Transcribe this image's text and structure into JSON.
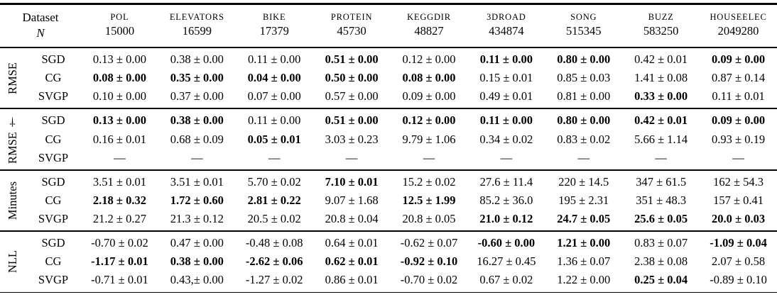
{
  "table": {
    "corner": {
      "dataset_label": "Dataset",
      "n_label": "N"
    },
    "columns": [
      {
        "name": "pol",
        "label": "POL",
        "n": "15000"
      },
      {
        "name": "elevators",
        "label": "ELEVATORS",
        "n": "16599"
      },
      {
        "name": "bike",
        "label": "BIKE",
        "n": "17379"
      },
      {
        "name": "protein",
        "label": "PROTEIN",
        "n": "45730"
      },
      {
        "name": "keggdir",
        "label": "KEGGDIR",
        "n": "48827"
      },
      {
        "name": "3droad",
        "label": "3DROAD",
        "n": "434874"
      },
      {
        "name": "song",
        "label": "SONG",
        "n": "515345"
      },
      {
        "name": "buzz",
        "label": "BUZZ",
        "n": "583250"
      },
      {
        "name": "houseelec",
        "label": "HOUSEELEC",
        "n": "2049280"
      }
    ],
    "blocks": [
      {
        "name": "rmse",
        "label": "RMSE",
        "rows": [
          {
            "method": "SGD",
            "cells": [
              {
                "t": "0.13 ± 0.00",
                "b": false
              },
              {
                "t": "0.38 ± 0.00",
                "b": false
              },
              {
                "t": "0.11 ± 0.00",
                "b": false
              },
              {
                "t": "0.51 ± 0.00",
                "b": true
              },
              {
                "t": "0.12 ± 0.00",
                "b": false
              },
              {
                "t": "0.11 ± 0.00",
                "b": true
              },
              {
                "t": "0.80 ± 0.00",
                "b": true
              },
              {
                "t": "0.42 ± 0.01",
                "b": false
              },
              {
                "t": "0.09 ± 0.00",
                "b": true
              }
            ]
          },
          {
            "method": "CG",
            "cells": [
              {
                "t": "0.08 ± 0.00",
                "b": true
              },
              {
                "t": "0.35 ± 0.00",
                "b": true
              },
              {
                "t": "0.04 ± 0.00",
                "b": true
              },
              {
                "t": "0.50 ± 0.00",
                "b": true
              },
              {
                "t": "0.08 ± 0.00",
                "b": true
              },
              {
                "t": "0.15 ± 0.01",
                "b": false
              },
              {
                "t": "0.85 ± 0.03",
                "b": false
              },
              {
                "t": "1.41 ± 0.08",
                "b": false
              },
              {
                "t": "0.87 ± 0.14",
                "b": false
              }
            ]
          },
          {
            "method": "SVGP",
            "cells": [
              {
                "t": "0.10 ± 0.00",
                "b": false
              },
              {
                "t": "0.37 ± 0.00",
                "b": false
              },
              {
                "t": "0.07 ± 0.00",
                "b": false
              },
              {
                "t": "0.57 ± 0.00",
                "b": false
              },
              {
                "t": "0.09 ± 0.00",
                "b": false
              },
              {
                "t": "0.49 ± 0.01",
                "b": false
              },
              {
                "t": "0.81 ± 0.00",
                "b": false
              },
              {
                "t": "0.33 ± 0.00",
                "b": true
              },
              {
                "t": "0.11 ± 0.01",
                "b": false
              }
            ]
          }
        ]
      },
      {
        "name": "rmse-dagger",
        "label": "RMSE †",
        "rows": [
          {
            "method": "SGD",
            "cells": [
              {
                "t": "0.13 ± 0.00",
                "b": true
              },
              {
                "t": "0.38 ± 0.00",
                "b": true
              },
              {
                "t": "0.11 ± 0.00",
                "b": false
              },
              {
                "t": "0.51 ± 0.00",
                "b": true
              },
              {
                "t": "0.12 ± 0.00",
                "b": true
              },
              {
                "t": "0.11 ± 0.00",
                "b": true
              },
              {
                "t": "0.80 ± 0.00",
                "b": true
              },
              {
                "t": "0.42 ± 0.01",
                "b": true
              },
              {
                "t": "0.09 ± 0.00",
                "b": true
              }
            ]
          },
          {
            "method": "CG",
            "cells": [
              {
                "t": "0.16 ± 0.01",
                "b": false
              },
              {
                "t": "0.68 ± 0.09",
                "b": false
              },
              {
                "t": "0.05 ± 0.01",
                "b": true
              },
              {
                "t": "3.03 ± 0.23",
                "b": false
              },
              {
                "t": "9.79 ± 1.06",
                "b": false
              },
              {
                "t": "0.34 ± 0.02",
                "b": false
              },
              {
                "t": "0.83 ± 0.02",
                "b": false
              },
              {
                "t": "5.66 ± 1.14",
                "b": false
              },
              {
                "t": "0.93 ± 0.19",
                "b": false
              }
            ]
          },
          {
            "method": "SVGP",
            "cells": [
              {
                "t": "—",
                "b": false
              },
              {
                "t": "—",
                "b": false
              },
              {
                "t": "—",
                "b": false
              },
              {
                "t": "—",
                "b": false
              },
              {
                "t": "—",
                "b": false
              },
              {
                "t": "—",
                "b": false
              },
              {
                "t": "—",
                "b": false
              },
              {
                "t": "—",
                "b": false
              },
              {
                "t": "—",
                "b": false
              }
            ]
          }
        ]
      },
      {
        "name": "minutes",
        "label": "Minutes",
        "rows": [
          {
            "method": "SGD",
            "cells": [
              {
                "t": "3.51 ± 0.01",
                "b": false
              },
              {
                "t": "3.51 ± 0.01",
                "b": false
              },
              {
                "t": "5.70 ± 0.02",
                "b": false
              },
              {
                "t": "7.10 ± 0.01",
                "b": true
              },
              {
                "t": "15.2 ± 0.02",
                "b": false
              },
              {
                "t": "27.6 ± 11.4",
                "b": false
              },
              {
                "t": "220 ± 14.5",
                "b": false
              },
              {
                "t": "347 ± 61.5",
                "b": false
              },
              {
                "t": "162 ± 54.3",
                "b": false
              }
            ]
          },
          {
            "method": "CG",
            "cells": [
              {
                "t": "2.18 ± 0.32",
                "b": true
              },
              {
                "t": "1.72 ± 0.60",
                "b": true
              },
              {
                "t": "2.81 ± 0.22",
                "b": true
              },
              {
                "t": "9.07 ± 1.68",
                "b": false
              },
              {
                "t": "12.5 ± 1.99",
                "b": true
              },
              {
                "t": "85.2 ± 36.0",
                "b": false
              },
              {
                "t": "195 ± 2.31",
                "b": false
              },
              {
                "t": "351 ± 48.3",
                "b": false
              },
              {
                "t": "157 ± 0.41",
                "b": false
              }
            ]
          },
          {
            "method": "SVGP",
            "cells": [
              {
                "t": "21.2 ± 0.27",
                "b": false
              },
              {
                "t": "21.3 ± 0.12",
                "b": false
              },
              {
                "t": "20.5 ± 0.02",
                "b": false
              },
              {
                "t": "20.8 ± 0.04",
                "b": false
              },
              {
                "t": "20.8 ± 0.05",
                "b": false
              },
              {
                "t": "21.0 ± 0.12",
                "b": true
              },
              {
                "t": "24.7 ± 0.05",
                "b": true
              },
              {
                "t": "25.6 ± 0.05",
                "b": true
              },
              {
                "t": "20.0 ± 0.03",
                "b": true
              }
            ]
          }
        ]
      },
      {
        "name": "nll",
        "label": "NLL",
        "rows": [
          {
            "method": "SGD",
            "cells": [
              {
                "t": "-0.70 ± 0.02",
                "b": false
              },
              {
                "t": "0.47 ± 0.00",
                "b": false
              },
              {
                "t": "-0.48 ± 0.08",
                "b": false
              },
              {
                "t": "0.64 ± 0.01",
                "b": false
              },
              {
                "t": "-0.62 ± 0.07",
                "b": false
              },
              {
                "t": "-0.60 ± 0.00",
                "b": true
              },
              {
                "t": "1.21 ± 0.00",
                "b": true
              },
              {
                "t": "0.83 ± 0.07",
                "b": false
              },
              {
                "t": "-1.09 ± 0.04",
                "b": true
              }
            ]
          },
          {
            "method": "CG",
            "cells": [
              {
                "t": "-1.17 ± 0.01",
                "b": true
              },
              {
                "t": "0.38 ± 0.00",
                "b": true
              },
              {
                "t": "-2.62 ± 0.06",
                "b": true
              },
              {
                "t": "0.62 ± 0.01",
                "b": true
              },
              {
                "t": "-0.92 ± 0.10",
                "b": true
              },
              {
                "t": "16.27 ± 0.45",
                "b": false
              },
              {
                "t": "1.36 ± 0.07",
                "b": false
              },
              {
                "t": "2.38 ± 0.08",
                "b": false
              },
              {
                "t": "2.07 ± 0.58",
                "b": false
              }
            ]
          },
          {
            "method": "SVGP",
            "cells": [
              {
                "t": "-0.71 ± 0.01",
                "b": false
              },
              {
                "t": "0.43,± 0.00",
                "b": false
              },
              {
                "t": "-1.27 ± 0.02",
                "b": false
              },
              {
                "t": "0.86 ± 0.01",
                "b": false
              },
              {
                "t": "-0.70 ± 0.02",
                "b": false
              },
              {
                "t": "0.67 ± 0.02",
                "b": false
              },
              {
                "t": "1.22 ± 0.00",
                "b": false
              },
              {
                "t": "0.25 ± 0.04",
                "b": true
              },
              {
                "t": "-0.89 ± 0.10",
                "b": false
              }
            ]
          }
        ]
      }
    ]
  }
}
